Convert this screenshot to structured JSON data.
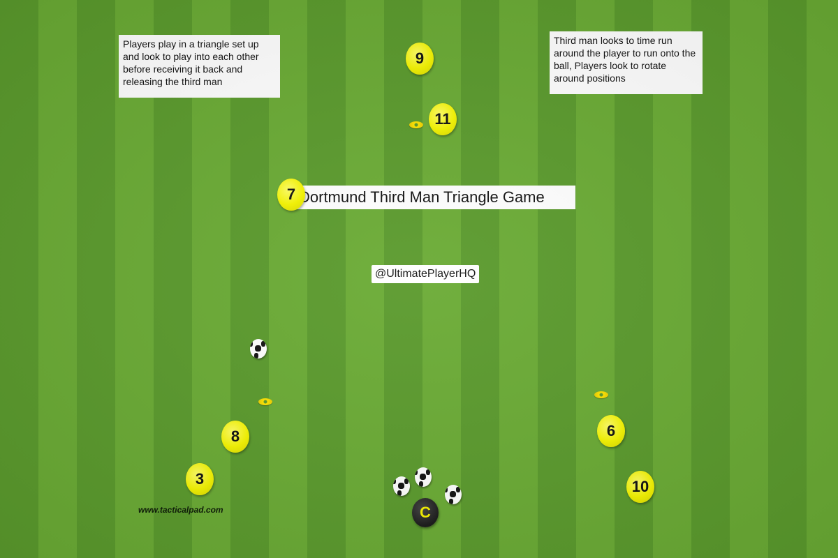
{
  "title": "Dortmund Third Man Triangle Game",
  "handle": "@UltimatePlayerHQ",
  "watermark": "www.tacticalpad.com",
  "notes": {
    "left": "Players play in a triangle set up and look to play into each other before receiving it back and releasing the third man",
    "right": "Third man looks to time run around the player to run onto the ball, Players look to rotate around positions"
  },
  "players": {
    "p9": "9",
    "p11": "11",
    "p7": "7",
    "p8": "8",
    "p3": "3",
    "p6": "6",
    "p10": "10"
  },
  "coach": "C",
  "colors": {
    "player": "#f5f500",
    "grass_dark": "#5a9a2c",
    "grass_light": "#6aab34",
    "coach": "#1a1a1a"
  }
}
